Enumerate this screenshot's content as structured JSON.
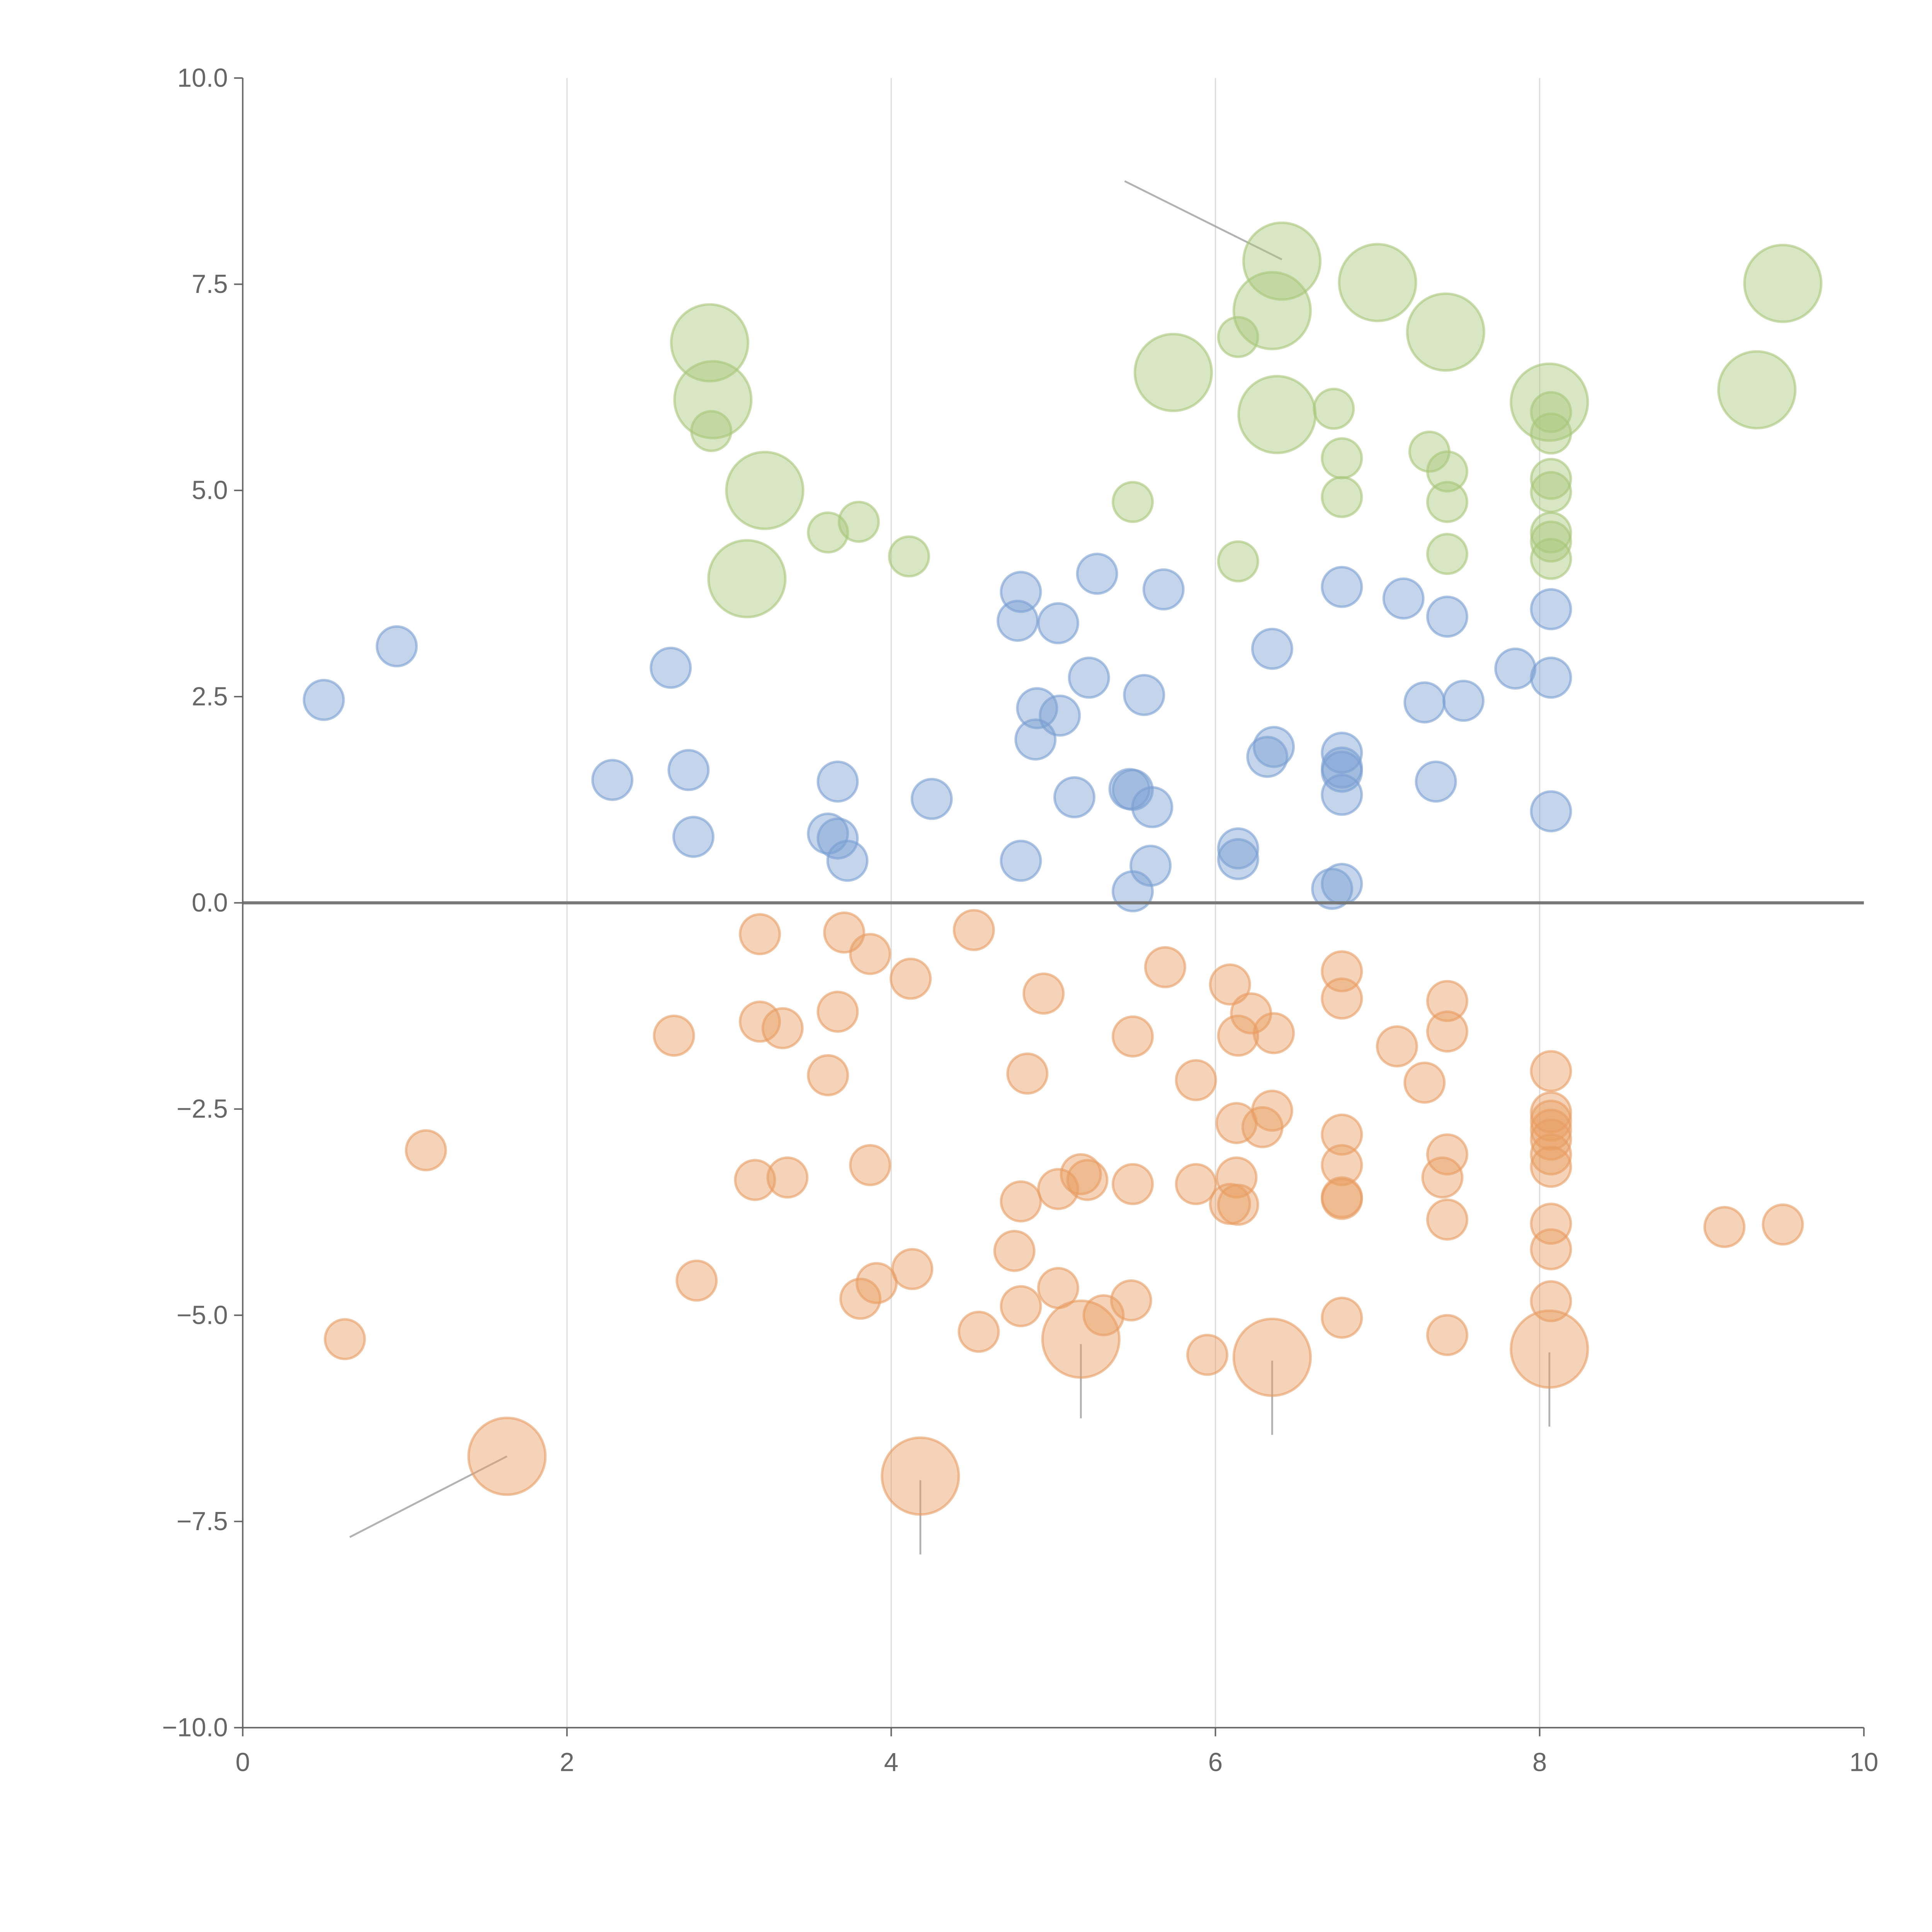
{
  "chart_data": {
    "type": "scatter",
    "title": "",
    "xlabel": "",
    "ylabel": "",
    "xlim": [
      0,
      10
    ],
    "ylim": [
      -10,
      10
    ],
    "grid": "vertical",
    "x_ticks": [
      "0",
      "2",
      "4",
      "6",
      "8",
      "10"
    ],
    "y_ticks": [
      "10.0",
      "7.5",
      "5.0",
      "2.5",
      "0.0",
      "−2.5",
      "−5.0",
      "−7.5",
      "−10.0"
    ],
    "series": [
      {
        "name": "green",
        "color": "#a9c77a",
        "points": [
          [
            2.88,
            6.79,
            3
          ],
          [
            2.9,
            6.1,
            3
          ],
          [
            2.89,
            5.72,
            1
          ],
          [
            3.22,
            5.0,
            3
          ],
          [
            3.11,
            3.93,
            3
          ],
          [
            3.61,
            4.49,
            1
          ],
          [
            3.8,
            4.62,
            1
          ],
          [
            4.11,
            4.2,
            1
          ],
          [
            5.49,
            4.86,
            1
          ],
          [
            5.74,
            6.43,
            3
          ],
          [
            6.14,
            6.86,
            1
          ],
          [
            6.41,
            7.78,
            3
          ],
          [
            6.35,
            7.18,
            3
          ],
          [
            6.38,
            5.92,
            3
          ],
          [
            6.14,
            4.14,
            1
          ],
          [
            6.73,
            5.99,
            1
          ],
          [
            6.78,
            5.39,
            1
          ],
          [
            6.78,
            4.92,
            1
          ],
          [
            7.0,
            7.52,
            3
          ],
          [
            7.42,
            6.92,
            3
          ],
          [
            7.32,
            5.47,
            1
          ],
          [
            7.43,
            5.23,
            1
          ],
          [
            7.43,
            4.86,
            1
          ],
          [
            7.43,
            4.23,
            1
          ],
          [
            8.06,
            6.07,
            3
          ],
          [
            8.07,
            5.95,
            1
          ],
          [
            8.07,
            5.69,
            1
          ],
          [
            8.07,
            5.14,
            1
          ],
          [
            8.07,
            4.98,
            1
          ],
          [
            8.07,
            4.49,
            1
          ],
          [
            8.07,
            4.38,
            1
          ],
          [
            8.07,
            4.17,
            1
          ],
          [
            9.34,
            6.22,
            3
          ],
          [
            9.5,
            7.51,
            3
          ]
        ]
      },
      {
        "name": "blue",
        "color": "#7a9fd2",
        "points": [
          [
            0.5,
            2.46,
            1
          ],
          [
            0.95,
            3.11,
            1
          ],
          [
            2.28,
            1.49,
            1
          ],
          [
            2.64,
            2.85,
            1
          ],
          [
            2.75,
            1.61,
            1
          ],
          [
            2.78,
            0.8,
            1
          ],
          [
            3.61,
            0.84,
            1
          ],
          [
            3.67,
            1.47,
            1
          ],
          [
            3.67,
            0.78,
            1
          ],
          [
            3.73,
            0.51,
            1
          ],
          [
            4.25,
            1.26,
            1
          ],
          [
            4.8,
            3.77,
            1
          ],
          [
            4.78,
            3.42,
            1
          ],
          [
            5.03,
            3.39,
            1
          ],
          [
            5.27,
            3.99,
            1
          ],
          [
            5.68,
            3.8,
            1
          ],
          [
            4.9,
            2.36,
            1
          ],
          [
            4.89,
            1.98,
            1
          ],
          [
            5.04,
            2.27,
            1
          ],
          [
            5.22,
            2.73,
            1
          ],
          [
            5.56,
            2.52,
            1
          ],
          [
            5.13,
            1.28,
            1
          ],
          [
            5.47,
            1.38,
            1
          ],
          [
            5.49,
            1.37,
            1
          ],
          [
            5.61,
            1.16,
            1
          ],
          [
            4.8,
            0.51,
            1
          ],
          [
            5.6,
            0.45,
            1
          ],
          [
            5.49,
            0.14,
            1
          ],
          [
            6.14,
            0.66,
            1
          ],
          [
            6.14,
            0.53,
            1
          ],
          [
            6.35,
            3.08,
            1
          ],
          [
            6.36,
            1.89,
            1
          ],
          [
            6.32,
            1.77,
            1
          ],
          [
            6.78,
            3.83,
            1
          ],
          [
            6.78,
            1.82,
            1
          ],
          [
            6.78,
            1.64,
            1
          ],
          [
            6.78,
            1.59,
            1
          ],
          [
            6.78,
            1.31,
            1
          ],
          [
            6.72,
            0.17,
            1
          ],
          [
            6.78,
            0.23,
            1
          ],
          [
            7.16,
            3.69,
            1
          ],
          [
            7.43,
            3.47,
            1
          ],
          [
            7.29,
            2.43,
            1
          ],
          [
            7.53,
            2.45,
            1
          ],
          [
            7.36,
            1.47,
            1
          ],
          [
            7.85,
            2.84,
            1
          ],
          [
            8.07,
            3.56,
            1
          ],
          [
            8.07,
            2.73,
            1
          ],
          [
            8.07,
            1.11,
            1
          ]
        ]
      },
      {
        "name": "orange",
        "color": "#e89d62",
        "points": [
          [
            0.63,
            -5.29,
            1
          ],
          [
            1.13,
            -3.0,
            1
          ],
          [
            1.63,
            -6.71,
            3
          ],
          [
            2.66,
            -1.61,
            1
          ],
          [
            2.8,
            -4.58,
            1
          ],
          [
            3.19,
            -0.38,
            1
          ],
          [
            3.19,
            -1.44,
            1
          ],
          [
            3.33,
            -1.52,
            1
          ],
          [
            3.16,
            -3.36,
            1
          ],
          [
            3.36,
            -3.33,
            1
          ],
          [
            3.61,
            -2.09,
            1
          ],
          [
            3.67,
            -1.32,
            1
          ],
          [
            3.71,
            -0.36,
            1
          ],
          [
            3.87,
            -0.62,
            1
          ],
          [
            3.87,
            -3.18,
            1
          ],
          [
            3.81,
            -4.8,
            1
          ],
          [
            3.91,
            -4.61,
            1
          ],
          [
            4.12,
            -0.92,
            1
          ],
          [
            4.13,
            -4.44,
            1
          ],
          [
            4.18,
            -6.95,
            3
          ],
          [
            4.51,
            -0.33,
            1
          ],
          [
            4.54,
            -5.2,
            1
          ],
          [
            4.76,
            -4.22,
            1
          ],
          [
            4.8,
            -3.62,
            1
          ],
          [
            4.8,
            -4.89,
            1
          ],
          [
            4.84,
            -2.07,
            1
          ],
          [
            4.94,
            -1.1,
            1
          ],
          [
            5.03,
            -3.47,
            1
          ],
          [
            5.03,
            -4.67,
            1
          ],
          [
            5.17,
            -3.29,
            1
          ],
          [
            5.21,
            -3.36,
            1
          ],
          [
            5.17,
            -5.29,
            3
          ],
          [
            5.31,
            -5.0,
            1
          ],
          [
            5.49,
            -1.62,
            1
          ],
          [
            5.49,
            -3.41,
            1
          ],
          [
            5.48,
            -4.82,
            1
          ],
          [
            5.69,
            -0.78,
            1
          ],
          [
            5.88,
            -2.15,
            1
          ],
          [
            5.88,
            -3.41,
            1
          ],
          [
            5.95,
            -5.48,
            1
          ],
          [
            6.09,
            -0.99,
            1
          ],
          [
            6.14,
            -1.61,
            1
          ],
          [
            6.22,
            -1.34,
            1
          ],
          [
            6.36,
            -1.58,
            1
          ],
          [
            6.13,
            -2.67,
            1
          ],
          [
            6.29,
            -2.72,
            1
          ],
          [
            6.35,
            -2.52,
            1
          ],
          [
            6.13,
            -3.33,
            1
          ],
          [
            6.09,
            -3.65,
            1
          ],
          [
            6.14,
            -3.66,
            1
          ],
          [
            6.35,
            -5.51,
            3
          ],
          [
            6.78,
            -0.83,
            1
          ],
          [
            6.78,
            -1.16,
            1
          ],
          [
            6.78,
            -2.81,
            1
          ],
          [
            6.78,
            -3.18,
            1
          ],
          [
            6.78,
            -3.57,
            1
          ],
          [
            6.78,
            -3.59,
            1
          ],
          [
            6.78,
            -5.03,
            1
          ],
          [
            7.12,
            -1.74,
            1
          ],
          [
            7.29,
            -2.18,
            1
          ],
          [
            7.43,
            -1.19,
            1
          ],
          [
            7.43,
            -1.56,
            1
          ],
          [
            7.43,
            -3.05,
            1
          ],
          [
            7.4,
            -3.33,
            1
          ],
          [
            7.43,
            -3.84,
            1
          ],
          [
            7.43,
            -5.24,
            1
          ],
          [
            8.07,
            -2.04,
            1
          ],
          [
            8.07,
            -2.54,
            1
          ],
          [
            8.07,
            -2.64,
            1
          ],
          [
            8.07,
            -2.75,
            1
          ],
          [
            8.07,
            -2.87,
            1
          ],
          [
            8.07,
            -3.05,
            1
          ],
          [
            8.07,
            -3.2,
            1
          ],
          [
            8.07,
            -3.89,
            1
          ],
          [
            8.07,
            -4.2,
            1
          ],
          [
            8.07,
            -4.83,
            1
          ],
          [
            8.06,
            -5.41,
            3
          ],
          [
            9.14,
            -3.93,
            1
          ],
          [
            9.5,
            -3.9,
            1
          ]
        ]
      }
    ],
    "leaders": [
      [
        1.63,
        -6.71,
        0.66,
        -7.69
      ],
      [
        4.18,
        -7.0,
        4.18,
        -7.9
      ],
      [
        5.17,
        -5.35,
        5.17,
        -6.25
      ],
      [
        6.35,
        -5.55,
        6.35,
        -6.45
      ],
      [
        8.06,
        -5.45,
        8.06,
        -6.35
      ],
      [
        6.41,
        7.8,
        5.44,
        8.75
      ]
    ]
  }
}
